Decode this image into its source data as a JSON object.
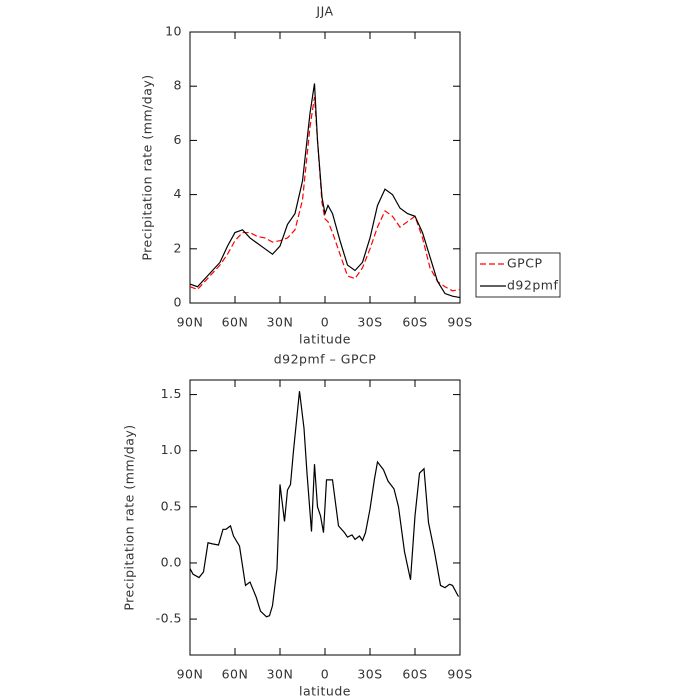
{
  "chart_data": [
    {
      "type": "line",
      "title": "JJA",
      "xlabel": "latitude",
      "ylabel": "Precipitation rate (mm/day)",
      "x": [
        90,
        85,
        80,
        75,
        70,
        65,
        60,
        55,
        50,
        45,
        40,
        35,
        30,
        25,
        20,
        15,
        10,
        7,
        5,
        2,
        0,
        -2,
        -5,
        -10,
        -15,
        -20,
        -25,
        -30,
        -35,
        -40,
        -45,
        -50,
        -55,
        -60,
        -65,
        -70,
        -75,
        -80,
        -85,
        -90
      ],
      "series": [
        {
          "name": "GPCP",
          "color": "#ff0000",
          "dash": true,
          "values": [
            0.6,
            0.5,
            0.8,
            1.1,
            1.4,
            1.8,
            2.3,
            2.6,
            2.6,
            2.45,
            2.4,
            2.25,
            2.3,
            2.4,
            2.7,
            3.8,
            6.5,
            7.6,
            6.0,
            3.7,
            3.1,
            3.0,
            2.6,
            1.8,
            1.0,
            0.9,
            1.3,
            2.0,
            2.8,
            3.4,
            3.2,
            2.8,
            3.0,
            3.2,
            2.4,
            1.3,
            0.8,
            0.6,
            0.45,
            0.5
          ]
        },
        {
          "name": "d92pmf",
          "color": "#000000",
          "dash": false,
          "values": [
            0.7,
            0.6,
            0.9,
            1.2,
            1.5,
            2.1,
            2.6,
            2.7,
            2.4,
            2.2,
            2.0,
            1.8,
            2.1,
            2.9,
            3.3,
            4.5,
            7.0,
            8.1,
            6.0,
            3.9,
            3.3,
            3.6,
            3.3,
            2.3,
            1.4,
            1.2,
            1.5,
            2.4,
            3.6,
            4.2,
            4.0,
            3.5,
            3.3,
            3.2,
            2.6,
            1.7,
            0.8,
            0.35,
            0.25,
            0.2
          ]
        }
      ],
      "xlim": [
        90,
        -90
      ],
      "xticks": [
        {
          "value": 90,
          "label": "90N"
        },
        {
          "value": 60,
          "label": "60N"
        },
        {
          "value": 30,
          "label": "30N"
        },
        0,
        {
          "value": -30,
          "label": "30S"
        },
        {
          "value": -60,
          "label": "60S"
        },
        {
          "value": -90,
          "label": "90S"
        }
      ],
      "ylim": [
        0,
        10
      ],
      "yticks": [
        0,
        2,
        4,
        6,
        8,
        10
      ],
      "legend": "right"
    },
    {
      "type": "line",
      "title": "d92pmf – GPCP",
      "xlabel": "latitude",
      "ylabel": "Precipitation rate (mm/day)",
      "x": [
        90,
        88,
        84,
        81,
        78,
        75,
        71,
        68,
        66,
        63,
        61,
        57,
        53,
        50,
        46,
        43,
        39,
        37,
        35,
        32,
        30,
        27,
        25,
        23,
        21,
        17,
        14,
        12,
        9,
        7,
        5,
        3,
        1,
        -1,
        -5,
        -9,
        -13,
        -15,
        -18,
        -20,
        -23,
        -25,
        -27,
        -30,
        -33,
        -35,
        -39,
        -42,
        -46,
        -49,
        -53,
        -57,
        -60,
        -63,
        -66,
        -69,
        -73,
        -77,
        -80,
        -83,
        -85,
        -89
      ],
      "values": [
        -0.05,
        -0.1,
        -0.13,
        -0.08,
        0.18,
        0.17,
        0.16,
        0.3,
        0.3,
        0.33,
        0.24,
        0.15,
        -0.2,
        -0.17,
        -0.3,
        -0.43,
        -0.48,
        -0.47,
        -0.38,
        -0.05,
        0.7,
        0.37,
        0.65,
        0.7,
        1.0,
        1.53,
        1.2,
        0.8,
        0.28,
        0.88,
        0.5,
        0.42,
        0.27,
        0.74,
        0.74,
        0.33,
        0.27,
        0.23,
        0.25,
        0.21,
        0.24,
        0.2,
        0.27,
        0.48,
        0.75,
        0.9,
        0.83,
        0.73,
        0.66,
        0.5,
        0.1,
        -0.15,
        0.42,
        0.8,
        0.84,
        0.36,
        0.1,
        -0.2,
        -0.22,
        -0.19,
        -0.2,
        -0.3
      ],
      "color": "#000000",
      "xlim": [
        90,
        -90
      ],
      "xticks": [
        {
          "value": 90,
          "label": "90N"
        },
        {
          "value": 60,
          "label": "60N"
        },
        {
          "value": 30,
          "label": "30N"
        },
        0,
        {
          "value": -30,
          "label": "30S"
        },
        {
          "value": -60,
          "label": "60S"
        },
        {
          "value": -90,
          "label": "90S"
        }
      ],
      "ylim": [
        -0.82,
        1.63
      ],
      "yticks": [
        {
          "value": -0.5,
          "label": "-0.5"
        },
        {
          "value": 0,
          "label": "0.0"
        },
        0.5,
        {
          "value": 1,
          "label": "1.0"
        },
        1.5
      ]
    }
  ]
}
